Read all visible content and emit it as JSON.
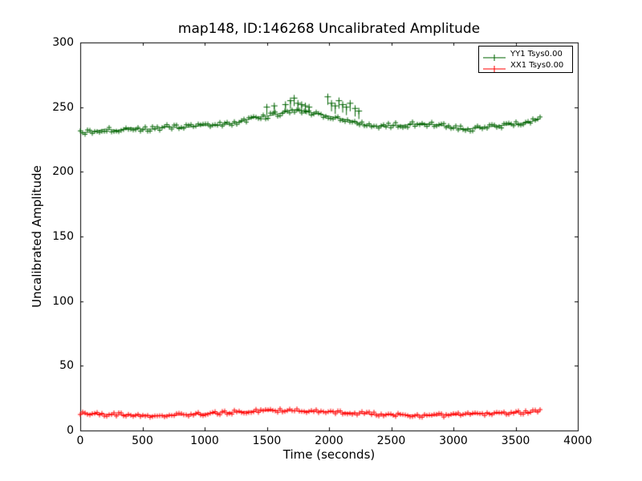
{
  "chart_data": {
    "type": "line",
    "title": "map148, ID:146268 Uncalibrated Amplitude",
    "xlabel": "Time (seconds)",
    "ylabel": "Uncalibrated Amplitude",
    "xlim": [
      0,
      4000
    ],
    "ylim": [
      0,
      300
    ],
    "xticks": [
      0,
      500,
      1000,
      1500,
      2000,
      2500,
      3000,
      3500,
      4000
    ],
    "yticks": [
      0,
      50,
      100,
      150,
      200,
      250,
      300
    ],
    "grid": false,
    "legend": {
      "position": "upper right",
      "entries": [
        {
          "label": "YY1 Tsys0.00",
          "color": "#006400"
        },
        {
          "label": "XX1 Tsys0.00",
          "color": "#ff0000"
        }
      ]
    },
    "series": [
      {
        "name": "YY1 Tsys0.00",
        "color": "#006400",
        "marker": "+",
        "noise": 2.0,
        "x": [
          0,
          100,
          200,
          300,
          400,
          500,
          600,
          700,
          800,
          900,
          1000,
          1100,
          1200,
          1300,
          1400,
          1500,
          1600,
          1700,
          1800,
          1900,
          2000,
          2100,
          2200,
          2300,
          2400,
          2500,
          2600,
          2700,
          2800,
          2900,
          3000,
          3100,
          3200,
          3300,
          3400,
          3500,
          3600,
          3700
        ],
        "values": [
          230,
          231,
          233,
          232,
          234,
          233,
          233,
          235,
          234,
          235,
          236,
          236,
          237,
          239,
          242,
          243,
          245,
          248,
          247,
          245,
          243,
          241,
          239,
          236,
          235,
          236,
          236,
          237,
          237,
          236,
          234,
          233,
          234,
          235,
          236,
          237,
          238,
          241
        ],
        "spikes": [
          [
            1500,
            250
          ],
          [
            1560,
            251
          ],
          [
            1650,
            252
          ],
          [
            1690,
            255
          ],
          [
            1720,
            257
          ],
          [
            1750,
            253
          ],
          [
            1780,
            252
          ],
          [
            1810,
            251
          ],
          [
            1840,
            250
          ],
          [
            1990,
            258
          ],
          [
            2020,
            253
          ],
          [
            2050,
            251
          ],
          [
            2080,
            255
          ],
          [
            2110,
            252
          ],
          [
            2140,
            250
          ],
          [
            2170,
            253
          ],
          [
            2210,
            249
          ],
          [
            2240,
            247
          ]
        ]
      },
      {
        "name": "XX1 Tsys0.00",
        "color": "#ff0000",
        "marker": "+",
        "noise": 1.5,
        "x": [
          0,
          100,
          200,
          300,
          400,
          500,
          600,
          700,
          800,
          900,
          1000,
          1100,
          1200,
          1300,
          1400,
          1500,
          1600,
          1700,
          1800,
          1900,
          2000,
          2100,
          2200,
          2300,
          2400,
          2500,
          2600,
          2700,
          2800,
          2900,
          3000,
          3100,
          3200,
          3300,
          3400,
          3500,
          3600,
          3700
        ],
        "values": [
          13,
          12.8,
          12.5,
          12.2,
          12,
          11.8,
          11.5,
          11.8,
          12,
          12.5,
          13,
          13.5,
          14,
          14.5,
          15,
          15.2,
          15.5,
          15.3,
          15,
          14.8,
          14.5,
          14,
          13.5,
          13,
          12.5,
          12.2,
          12,
          11.8,
          11.5,
          11.8,
          12,
          12.5,
          13,
          13.2,
          13.5,
          13.8,
          14,
          15
        ],
        "spikes": []
      }
    ]
  }
}
